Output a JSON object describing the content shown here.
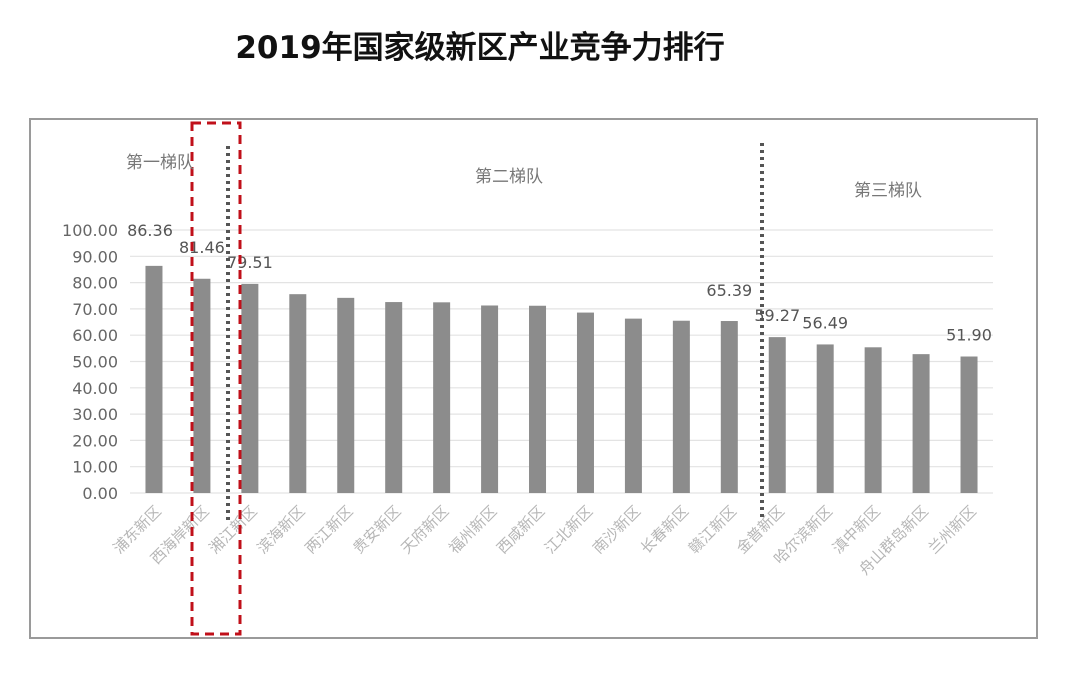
{
  "title": "2019年国家级新区产业竞争力排行",
  "chart_data": {
    "type": "bar",
    "categories": [
      "浦东新区",
      "西海岸新区",
      "湘江新区",
      "滨海新区",
      "两江新区",
      "贵安新区",
      "天府新区",
      "福州新区",
      "西咸新区",
      "江北新区",
      "南沙新区",
      "长春新区",
      "赣江新区",
      "金普新区",
      "哈尔滨新区",
      "滇中新区",
      "舟山群岛新区",
      "兰州新区"
    ],
    "values": [
      86.36,
      81.46,
      79.51,
      75.6,
      74.2,
      72.6,
      72.5,
      71.3,
      71.2,
      68.6,
      66.3,
      65.5,
      65.39,
      59.27,
      56.49,
      55.4,
      52.8,
      51.9
    ],
    "data_labels": {
      "0": "86.36",
      "1": "81.46",
      "2": "79.51",
      "12": "65.39",
      "13": "59.27",
      "14": "56.49",
      "17": "51.90"
    },
    "ylim": [
      0,
      100
    ],
    "yticks": [
      "0.00",
      "10.00",
      "20.00",
      "30.00",
      "40.00",
      "50.00",
      "60.00",
      "70.00",
      "80.00",
      "90.00",
      "100.00"
    ],
    "grid": true,
    "tiers": [
      "第一梯队",
      "第二梯队",
      "第三梯队"
    ],
    "colors": {
      "bar": "#8c8c8c",
      "grid": "#e3e3e3",
      "highlight": "#c0101a",
      "divider": "#555555",
      "label": "#b6b6b6",
      "frame": "#9a9a9a"
    }
  }
}
